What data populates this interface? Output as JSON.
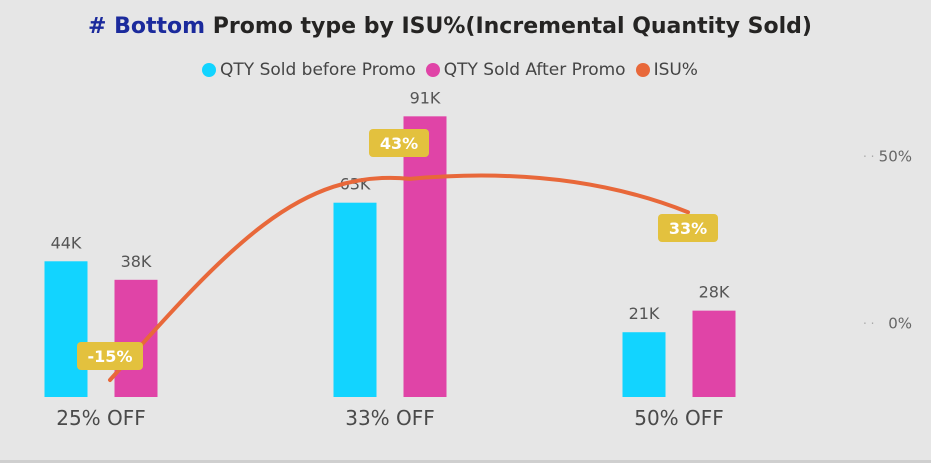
{
  "title": {
    "accent": "# Bottom",
    "rest": " Promo type by ISU%(Incremental Quantity Sold)"
  },
  "legend": [
    {
      "label": "QTY Sold before Promo",
      "color": "#12d4ff"
    },
    {
      "label": "QTY Sold After Promo",
      "color": "#e044a7"
    },
    {
      "label": "ISU%",
      "color": "#e8683a"
    }
  ],
  "chart_data": {
    "type": "bar",
    "categories": [
      "25% OFF",
      "33% OFF",
      "50% OFF"
    ],
    "series": [
      {
        "name": "QTY Sold before Promo",
        "values": [
          44000,
          63000,
          21000
        ],
        "labels": [
          "44K",
          "63K",
          "21K"
        ],
        "color": "#12d4ff"
      },
      {
        "name": "QTY Sold After Promo",
        "values": [
          38000,
          91000,
          28000
        ],
        "labels": [
          "38K",
          "91K",
          "28K"
        ],
        "color": "#e044a7"
      }
    ],
    "line_series": {
      "name": "ISU%",
      "type": "line",
      "axis": "secondary",
      "values": [
        -15,
        43,
        33
      ],
      "labels": [
        "-15%",
        "43%",
        "33%"
      ],
      "color": "#e8683a"
    },
    "ylim": [
      0,
      95000
    ],
    "y2lim": [
      -22,
      63
    ],
    "y2_ticks": [
      0,
      50
    ],
    "y2_tick_labels": [
      "0%",
      "50%"
    ],
    "data_label_color": "#e3c13e"
  }
}
